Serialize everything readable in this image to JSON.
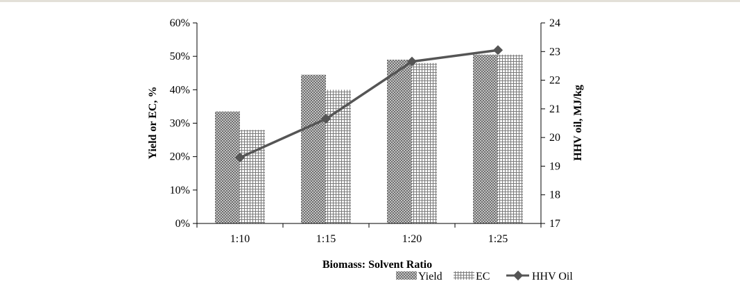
{
  "chart_data": {
    "type": "bar",
    "categories": [
      "1:10",
      "1:15",
      "1:20",
      "1:25"
    ],
    "series": [
      {
        "name": "Yield",
        "type": "bar",
        "axis": "left",
        "values": [
          33.5,
          44.5,
          49.0,
          50.5
        ]
      },
      {
        "name": "EC",
        "type": "bar",
        "axis": "left",
        "values": [
          28.0,
          40.0,
          48.0,
          50.5
        ]
      },
      {
        "name": "HHV Oil",
        "type": "line",
        "axis": "right",
        "values": [
          19.3,
          20.65,
          22.65,
          23.05
        ]
      }
    ],
    "xlabel": "Biomass: Solvent Ratio",
    "ylabel": "Yield or EC, %",
    "y2label": "HHV oil, MJ/kg",
    "ylim": [
      0,
      60
    ],
    "y2lim": [
      17,
      24
    ],
    "yticks": [
      "0%",
      "10%",
      "20%",
      "30%",
      "40%",
      "50%",
      "60%"
    ],
    "y2ticks": [
      "17",
      "18",
      "19",
      "20",
      "21",
      "22",
      "23",
      "24"
    ],
    "legend_position": "bottom-right",
    "grid": false,
    "colors": {
      "yield": "#8c8c8c",
      "ec": "#7a7a7a",
      "line": "#555555",
      "axis": "#000000"
    }
  }
}
